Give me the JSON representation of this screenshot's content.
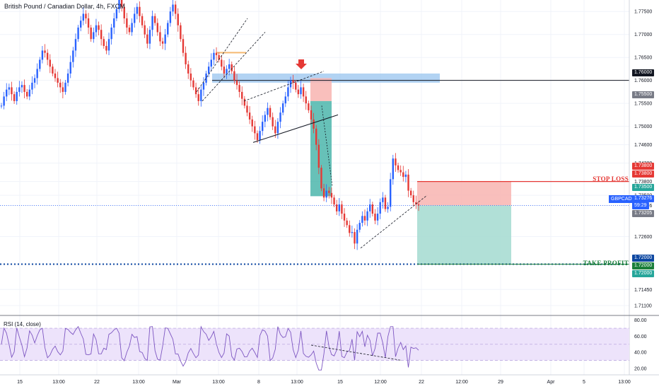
{
  "header": {
    "symbol_title": "British Pound / Canadian Dollar, 4h, FXCM"
  },
  "annotations": {
    "stop_loss": "STOP LOSS",
    "take_profit": "TAKE PROFIT"
  },
  "price_axis": {
    "ticks": [
      "1.77500",
      "1.77000",
      "1.76500",
      "1.76000",
      "1.75500",
      "1.75000",
      "1.74600",
      "1.74200",
      "1.73800",
      "1.73500",
      "1.73276",
      "1.72600",
      "1.72000",
      "1.71450",
      "1.71100"
    ]
  },
  "tags": {
    "level_1": "1.76000",
    "level_2": "1.75500",
    "stop_a": "1.73800",
    "stop_b": "1.73800",
    "entry": "1.73500",
    "symbol": "GBPCAD",
    "last": "1.73276",
    "countdown": "59:29",
    "level_3": "1.73205",
    "tp_a": "1.72000",
    "tp_b": "1.72000",
    "tp_c": "1.72000"
  },
  "time_axis": [
    "15",
    "13:00",
    "22",
    "13:00",
    "Mar",
    "13:00",
    "8",
    "13:00",
    "15",
    "12:00",
    "22",
    "12:00",
    "29",
    "Apr",
    "5",
    "13:00"
  ],
  "rsi": {
    "label": "RSI (14, close)",
    "ticks": [
      "80.00",
      "60.00",
      "40.00",
      "20.00"
    ]
  },
  "colors": {
    "up": "#2962ff",
    "down": "#e53935",
    "stop_zone": "#f8b4b0",
    "target_zone": "#a8ddd3",
    "resistance": "#9fc8f0"
  },
  "chart_data": {
    "type": "candlestick",
    "symbol": "GBPCAD",
    "timeframe": "4h",
    "ylim": [
      1.709,
      1.7775
    ],
    "levels": {
      "resistance": 1.76,
      "stop_loss": 1.738,
      "entry": 1.735,
      "last": 1.73276,
      "take_profit": 1.72
    },
    "price_path": [
      1.7545,
      1.7565,
      1.758,
      1.7585,
      1.757,
      1.7555,
      1.7575,
      1.7585,
      1.759,
      1.7575,
      1.7565,
      1.758,
      1.7595,
      1.7605,
      1.7625,
      1.7645,
      1.7665,
      1.766,
      1.7645,
      1.763,
      1.7615,
      1.7605,
      1.7595,
      1.7585,
      1.7575,
      1.7595,
      1.7615,
      1.764,
      1.7665,
      1.769,
      1.7715,
      1.773,
      1.7745,
      1.7735,
      1.7715,
      1.769,
      1.7705,
      1.772,
      1.771,
      1.769,
      1.7675,
      1.7665,
      1.769,
      1.7715,
      1.7735,
      1.7755,
      1.7775,
      1.776,
      1.7735,
      1.7715,
      1.7705,
      1.7725,
      1.7745,
      1.776,
      1.774,
      1.772,
      1.77,
      1.768,
      1.771,
      1.774,
      1.7725,
      1.7705,
      1.7685,
      1.768,
      1.77,
      1.7725,
      1.775,
      1.7765,
      1.7745,
      1.772,
      1.769,
      1.766,
      1.7635,
      1.7615,
      1.76,
      1.7585,
      1.757,
      1.7555,
      1.758,
      1.7595,
      1.7615,
      1.763,
      1.7645,
      1.766,
      1.7655,
      1.7645,
      1.763,
      1.7615,
      1.7625,
      1.7635,
      1.762,
      1.76,
      1.759,
      1.7575,
      1.756,
      1.7545,
      1.753,
      1.7515,
      1.75,
      1.7485,
      1.747,
      1.749,
      1.751,
      1.7525,
      1.754,
      1.752,
      1.75,
      1.7485,
      1.751,
      1.753,
      1.755,
      1.7565,
      1.7585,
      1.76,
      1.7595,
      1.758,
      1.757,
      1.7585,
      1.7565,
      1.755,
      1.7535,
      1.7515,
      1.7495,
      1.746,
      1.741,
      1.7365,
      1.7345,
      1.736,
      1.7355,
      1.7345,
      1.733,
      1.7315,
      1.733,
      1.731,
      1.7295,
      1.7285,
      1.7268,
      1.727,
      1.7245,
      1.7275,
      1.729,
      1.7305,
      1.7295,
      1.7315,
      1.733,
      1.731,
      1.7295,
      1.731,
      1.7335,
      1.7345,
      1.732,
      1.7325,
      1.7385,
      1.743,
      1.7415,
      1.7405,
      1.74,
      1.739,
      1.7395,
      1.736,
      1.735,
      1.7335,
      1.733,
      1.7328
    ]
  }
}
